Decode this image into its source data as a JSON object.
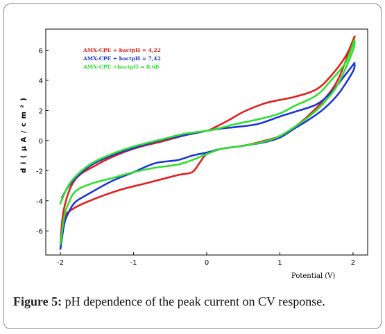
{
  "caption": {
    "figure_label": "Figure 5:",
    "text": " pH dependence of the peak current on CV response."
  },
  "chart_data": {
    "type": "line",
    "title": "",
    "xlabel": "Potential (V)",
    "ylabel": "d i ( μ A / c m ² )",
    "xlim": [
      -2.2,
      2.2
    ],
    "ylim": [
      -7.6,
      7.4
    ],
    "xticks": [
      -2,
      -1,
      0,
      1,
      2
    ],
    "yticks": [
      -6,
      -4,
      -2,
      0,
      2,
      4,
      6
    ],
    "grid": false,
    "legend_position": "top-left",
    "series": [
      {
        "name": "AMX-CPE + bactpH = 4,22",
        "color": "#e01f1f",
        "lower": [
          [
            -2.0,
            -7.1
          ],
          [
            -1.95,
            -5.2
          ],
          [
            -1.85,
            -4.6
          ],
          [
            -1.6,
            -4.0
          ],
          [
            -1.2,
            -3.3
          ],
          [
            -0.8,
            -2.8
          ],
          [
            -0.4,
            -2.3
          ],
          [
            -0.2,
            -2.1
          ],
          [
            -0.1,
            -1.5
          ],
          [
            0.0,
            -0.9
          ],
          [
            0.2,
            -0.55
          ],
          [
            0.5,
            -0.35
          ],
          [
            0.8,
            0.0
          ],
          [
            1.0,
            0.3
          ],
          [
            1.2,
            0.9
          ],
          [
            1.4,
            1.7
          ],
          [
            1.6,
            2.7
          ],
          [
            1.8,
            4.1
          ],
          [
            2.0,
            6.6
          ],
          [
            2.02,
            6.9
          ]
        ],
        "upper": [
          [
            2.02,
            6.9
          ],
          [
            1.9,
            5.6
          ],
          [
            1.7,
            4.3
          ],
          [
            1.5,
            3.4
          ],
          [
            1.2,
            2.9
          ],
          [
            0.9,
            2.6
          ],
          [
            0.75,
            2.4
          ],
          [
            0.5,
            1.9
          ],
          [
            0.3,
            1.35
          ],
          [
            0.1,
            0.85
          ],
          [
            0.0,
            0.65
          ],
          [
            -0.3,
            0.35
          ],
          [
            -0.6,
            -0.05
          ],
          [
            -0.9,
            -0.4
          ],
          [
            -1.2,
            -0.9
          ],
          [
            -1.5,
            -1.6
          ],
          [
            -1.8,
            -2.6
          ],
          [
            -1.95,
            -4.5
          ],
          [
            -2.0,
            -6.8
          ]
        ]
      },
      {
        "name": "AMX-CPE + bactpH = 7,42",
        "color": "#1c35d6",
        "lower": [
          [
            -2.0,
            -7.2
          ],
          [
            -1.95,
            -5.6
          ],
          [
            -1.9,
            -4.9
          ],
          [
            -1.8,
            -4.1
          ],
          [
            -1.6,
            -3.5
          ],
          [
            -1.3,
            -2.7
          ],
          [
            -1.0,
            -2.1
          ],
          [
            -0.7,
            -1.5
          ],
          [
            -0.4,
            -1.3
          ],
          [
            -0.2,
            -1.0
          ],
          [
            0.0,
            -0.8
          ],
          [
            0.2,
            -0.55
          ],
          [
            0.5,
            -0.35
          ],
          [
            0.8,
            -0.1
          ],
          [
            1.0,
            0.2
          ],
          [
            1.2,
            0.8
          ],
          [
            1.4,
            1.4
          ],
          [
            1.6,
            2.1
          ],
          [
            1.8,
            3.1
          ],
          [
            2.0,
            4.6
          ],
          [
            2.02,
            5.15
          ]
        ],
        "upper": [
          [
            2.02,
            5.15
          ],
          [
            1.9,
            4.4
          ],
          [
            1.7,
            3.2
          ],
          [
            1.5,
            2.4
          ],
          [
            1.2,
            1.9
          ],
          [
            1.0,
            1.6
          ],
          [
            0.7,
            1.1
          ],
          [
            0.4,
            0.9
          ],
          [
            0.2,
            0.8
          ],
          [
            0.0,
            0.65
          ],
          [
            -0.3,
            0.35
          ],
          [
            -0.6,
            0.05
          ],
          [
            -1.0,
            -0.5
          ],
          [
            -1.3,
            -1.0
          ],
          [
            -1.6,
            -1.7
          ],
          [
            -1.85,
            -2.8
          ],
          [
            -1.97,
            -3.7
          ],
          [
            -1.97,
            -3.8
          ]
        ]
      },
      {
        "name": "AMX-CPE +bactpH = 8,68",
        "color": "#2ee02e",
        "lower": [
          [
            -2.0,
            -6.9
          ],
          [
            -1.95,
            -5.1
          ],
          [
            -1.9,
            -4.3
          ],
          [
            -1.8,
            -3.4
          ],
          [
            -1.6,
            -2.9
          ],
          [
            -1.3,
            -2.5
          ],
          [
            -1.0,
            -2.1
          ],
          [
            -0.7,
            -1.8
          ],
          [
            -0.4,
            -1.6
          ],
          [
            -0.2,
            -1.3
          ],
          [
            0.0,
            -0.9
          ],
          [
            0.2,
            -0.55
          ],
          [
            0.5,
            -0.35
          ],
          [
            0.8,
            -0.05
          ],
          [
            1.0,
            0.3
          ],
          [
            1.2,
            0.9
          ],
          [
            1.4,
            1.6
          ],
          [
            1.6,
            2.5
          ],
          [
            1.8,
            3.8
          ],
          [
            2.0,
            6.0
          ],
          [
            2.02,
            6.7
          ]
        ],
        "upper": [
          [
            2.02,
            6.7
          ],
          [
            1.9,
            5.2
          ],
          [
            1.7,
            4.0
          ],
          [
            1.5,
            3.0
          ],
          [
            1.2,
            2.3
          ],
          [
            1.0,
            1.8
          ],
          [
            0.7,
            1.4
          ],
          [
            0.4,
            1.1
          ],
          [
            0.2,
            0.85
          ],
          [
            0.0,
            0.65
          ],
          [
            -0.3,
            0.45
          ],
          [
            -0.6,
            0.1
          ],
          [
            -1.0,
            -0.4
          ],
          [
            -1.3,
            -0.9
          ],
          [
            -1.6,
            -1.6
          ],
          [
            -1.85,
            -2.7
          ],
          [
            -1.97,
            -3.8
          ],
          [
            -2.0,
            -4.2
          ]
        ]
      }
    ]
  }
}
